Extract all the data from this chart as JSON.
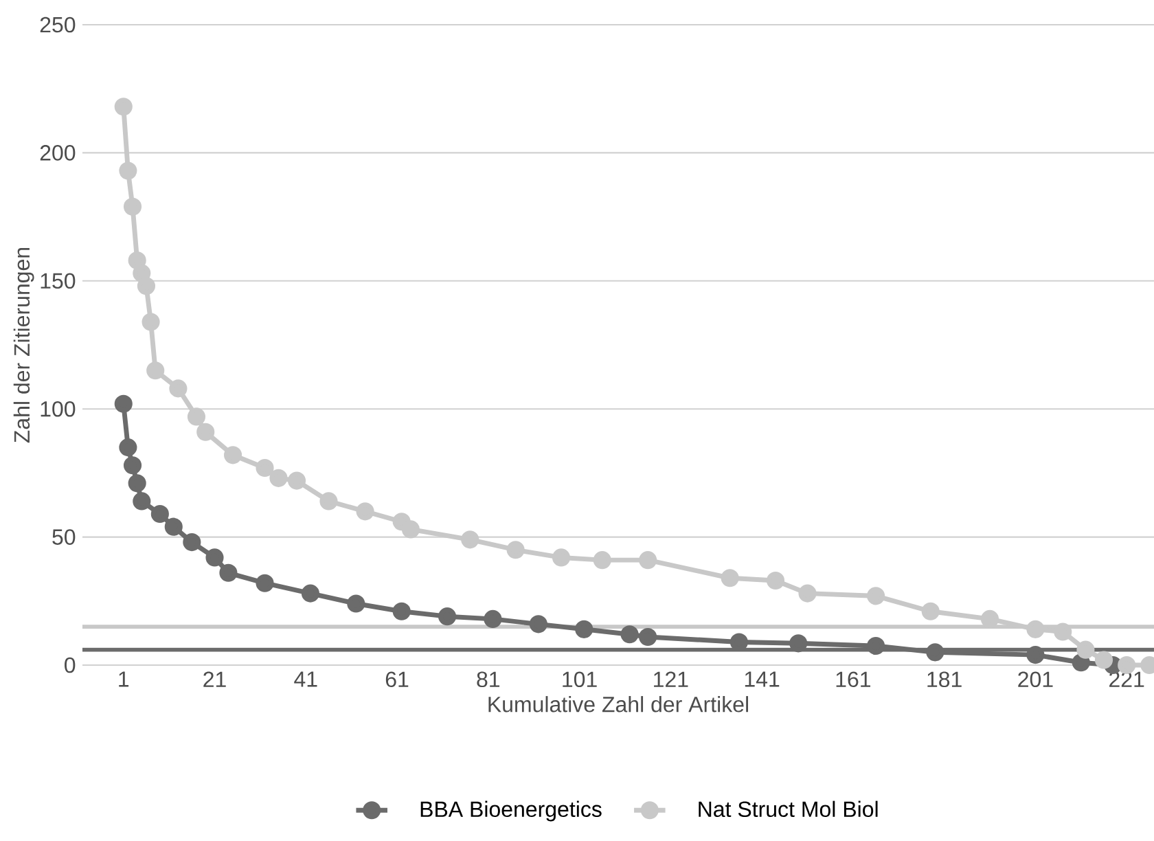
{
  "chart_data": {
    "type": "line",
    "xlabel": "Kumulative Zahl der Artikel",
    "ylabel": "Zahl der Zitierungen",
    "xlim": [
      -8,
      227
    ],
    "ylim": [
      0,
      250
    ],
    "xticks": [
      1,
      21,
      41,
      61,
      81,
      101,
      121,
      141,
      161,
      181,
      201,
      221
    ],
    "yticks": [
      0,
      50,
      100,
      150,
      200,
      250
    ],
    "grid": "y",
    "legend": "bottom",
    "marker": "circle",
    "series": [
      {
        "name": "BBA Bioenergetics",
        "color": "#6b6b6b",
        "x": [
          1,
          2,
          3,
          4,
          5,
          9,
          12,
          16,
          21,
          24,
          32,
          42,
          52,
          62,
          72,
          82,
          92,
          102,
          112,
          116,
          136,
          149,
          166,
          179,
          201,
          211,
          218
        ],
        "values": [
          102,
          85,
          78,
          71,
          64,
          59,
          54,
          48,
          42,
          36,
          32,
          28,
          24,
          21,
          19,
          18,
          16,
          14,
          12,
          11,
          9,
          8.5,
          7.5,
          5,
          4,
          1,
          0
        ]
      },
      {
        "name": "Nat Struct Mol Biol",
        "color": "#c8c8c8",
        "x": [
          1,
          2,
          3,
          4,
          5,
          6,
          7,
          8,
          13,
          17,
          19,
          25,
          32,
          35,
          39,
          46,
          54,
          62,
          64,
          77,
          87,
          97,
          106,
          116,
          134,
          144,
          151,
          166,
          178,
          191,
          201,
          207,
          212,
          216,
          221,
          226
        ],
        "values": [
          218,
          193,
          179,
          158,
          153,
          148,
          134,
          115,
          108,
          97,
          91,
          82,
          77,
          73,
          72,
          64,
          60,
          56,
          53,
          49,
          45,
          42,
          41,
          41,
          34,
          33,
          28,
          27,
          21,
          18,
          14,
          13,
          6,
          2,
          0,
          0
        ]
      }
    ],
    "ref_lines": [
      {
        "axis": "y",
        "value": 15,
        "color": "#c8c8c8"
      },
      {
        "axis": "y",
        "value": 6,
        "color": "#6b6b6b"
      }
    ]
  }
}
